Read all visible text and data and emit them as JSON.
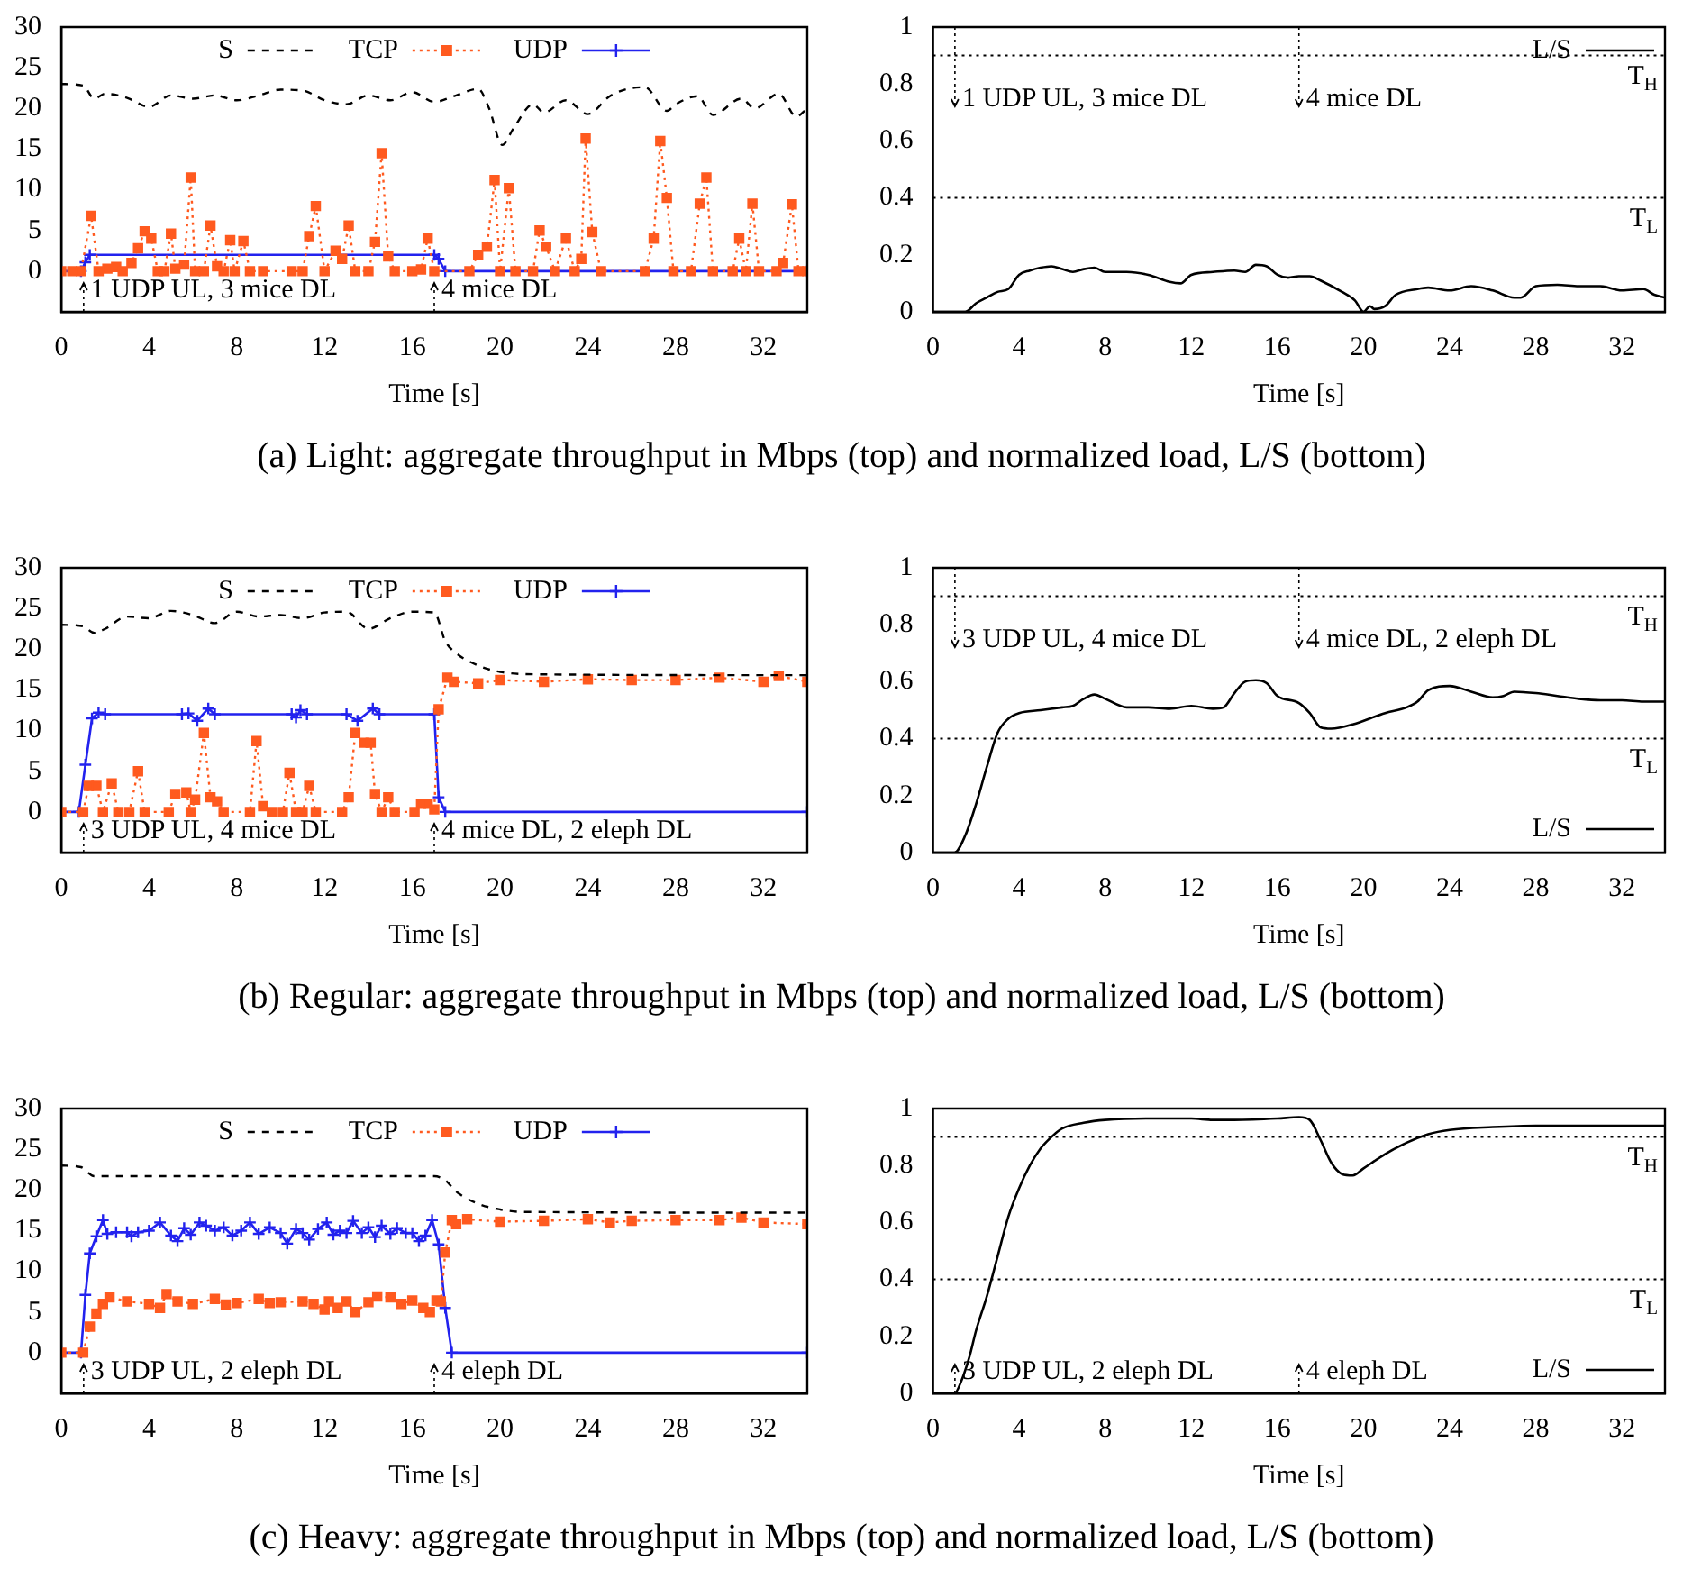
{
  "chart_data": [
    {
      "type": "line",
      "xlabel": "Time [s]",
      "xlim": [
        0,
        34
      ],
      "xticks": [
        0,
        4,
        8,
        12,
        16,
        20,
        24,
        28,
        32
      ],
      "ylim": [
        -5,
        30
      ],
      "yticks": [
        0,
        5,
        10,
        15,
        20,
        25,
        30
      ],
      "grid": false,
      "legend": "top",
      "series": [
        {
          "name": "S",
          "color": "#000000",
          "marker": "none",
          "line_style": "dashed",
          "x": [
            0,
            1,
            1.5,
            2,
            3,
            4,
            5,
            6,
            7,
            8,
            9,
            10,
            11,
            12,
            13,
            14,
            15,
            16,
            17,
            18,
            19,
            19.5,
            20.1,
            20.6,
            21.5,
            22,
            23,
            24,
            25,
            26,
            26.6,
            27.6,
            28,
            29,
            29.7,
            31,
            31.6,
            32.7,
            33.5,
            34
          ],
          "values": [
            23,
            22.8,
            21.2,
            21.8,
            21.3,
            20.2,
            21.6,
            21.2,
            21.6,
            21.0,
            21.6,
            22.3,
            22.2,
            21.0,
            20.5,
            21.6,
            21.0,
            22.0,
            20.8,
            21.6,
            22.4,
            20,
            15.5,
            17.5,
            20.5,
            19.5,
            21.0,
            19.3,
            21.5,
            22.5,
            22.6,
            19.7,
            20.5,
            21.5,
            19.2,
            21.2,
            20.0,
            21.8,
            19.0,
            20
          ]
        },
        {
          "name": "TCP",
          "color": "#ff5a1f",
          "marker": "square",
          "line_style": "dotted",
          "x": [
            0,
            0.5,
            0.9,
            1.36,
            1.7,
            2.1,
            2.5,
            2.8,
            3.2,
            3.5,
            3.8,
            4.1,
            4.4,
            4.7,
            5.0,
            5.2,
            5.6,
            5.9,
            6.1,
            6.5,
            6.8,
            7.1,
            7.4,
            7.7,
            7.9,
            8.3,
            8.6,
            9.2,
            10.5,
            11.0,
            11.3,
            11.6,
            12.0,
            12.5,
            12.8,
            13.1,
            13.4,
            14.0,
            14.3,
            14.6,
            14.9,
            15.2,
            16.0,
            16.4,
            16.7,
            17.0,
            18.6,
            19.0,
            19.4,
            19.75,
            20.0,
            20.4,
            20.7,
            21.5,
            21.8,
            22.1,
            22.5,
            23.0,
            23.4,
            23.7,
            23.9,
            24.2,
            24.6,
            26.6,
            27.0,
            27.3,
            27.6,
            27.9,
            28.7,
            29.1,
            29.4,
            29.7,
            30.6,
            30.9,
            31.2,
            31.5,
            31.8,
            32.6,
            32.9,
            33.3,
            33.6,
            34
          ],
          "values": [
            0,
            0,
            0,
            6.8,
            0,
            0.3,
            0.5,
            0,
            1.0,
            2.8,
            4.9,
            4.0,
            0,
            0,
            4.6,
            0.3,
            0.8,
            11.5,
            0,
            0,
            5.6,
            0.6,
            0,
            3.8,
            0,
            3.7,
            0,
            0,
            0,
            0,
            4.3,
            8.0,
            0,
            2.5,
            1.5,
            5.6,
            0,
            0,
            3.6,
            14.5,
            1.8,
            0,
            0,
            0.2,
            4.0,
            0,
            0,
            2.0,
            3.0,
            11.2,
            0,
            10.2,
            0,
            0,
            5.0,
            3.0,
            0,
            4.0,
            0,
            1.5,
            16.3,
            4.8,
            0,
            0,
            4.0,
            16.0,
            9.0,
            0,
            0,
            8.3,
            11.5,
            0,
            0,
            4.0,
            0,
            8.3,
            0,
            0,
            1.0,
            8.2,
            0,
            0
          ]
        },
        {
          "name": "UDP",
          "color": "#2222ee",
          "marker": "cross",
          "line_style": "solid",
          "x": [
            0,
            0.9,
            1.1,
            1.3,
            17,
            17.2,
            17.5,
            34
          ],
          "values": [
            0,
            0,
            1.1,
            2,
            2,
            1.5,
            0,
            0
          ]
        }
      ],
      "annotations": [
        "1 UDP UL, 3 mice DL",
        "4 mice DL"
      ],
      "title": "(a)  Light: aggregate throughput in Mbps (top) and normalized load, L/S (bottom)"
    },
    {
      "type": "line",
      "xlabel": "Time [s]",
      "xlim": [
        0,
        34
      ],
      "xticks": [
        0,
        4,
        8,
        12,
        16,
        20,
        24,
        28,
        32
      ],
      "ylim": [
        0,
        1
      ],
      "yticks": [
        0,
        0.2,
        0.4,
        0.6,
        0.8,
        1
      ],
      "grid": false,
      "legend": "top right",
      "series": [
        {
          "name": "L/S",
          "color": "#000000",
          "marker": "none",
          "line_style": "solid",
          "x": [
            0,
            1.5,
            2,
            2.5,
            3,
            3.5,
            4,
            4.5,
            5,
            5.5,
            6,
            6.5,
            7,
            7.5,
            8,
            9,
            10,
            11,
            11.5,
            12,
            13,
            14,
            14.5,
            15,
            15.5,
            16,
            16.5,
            17,
            17.5,
            18,
            19,
            19.6,
            20,
            20.3,
            20.5,
            21,
            21.5,
            22.5,
            23,
            24,
            25,
            26,
            27,
            27.3,
            28,
            29,
            30,
            31,
            32,
            33,
            33.5,
            34
          ],
          "values": [
            0,
            0,
            0.03,
            0.05,
            0.07,
            0.08,
            0.13,
            0.145,
            0.155,
            0.16,
            0.15,
            0.14,
            0.15,
            0.155,
            0.14,
            0.14,
            0.13,
            0.105,
            0.1,
            0.13,
            0.14,
            0.145,
            0.14,
            0.165,
            0.16,
            0.13,
            0.12,
            0.125,
            0.125,
            0.11,
            0.07,
            0.04,
            0,
            0.02,
            0.01,
            0.02,
            0.06,
            0.08,
            0.085,
            0.075,
            0.09,
            0.075,
            0.05,
            0.05,
            0.09,
            0.095,
            0.09,
            0.09,
            0.075,
            0.08,
            0.06,
            0.05
          ]
        }
      ],
      "ref_lines": [
        {
          "axis": "y",
          "value": 0.9,
          "label": "T$_{H}$",
          "line_style": "dotted",
          "color": "#000000"
        },
        {
          "axis": "y",
          "value": 0.4,
          "label": "T$_{L}$",
          "line_style": "dotted",
          "color": "#000000"
        }
      ],
      "annotations": [
        "1 UDP UL, 3 mice DL",
        "4 mice DL"
      ]
    },
    {
      "type": "line",
      "xlabel": "Time [s]",
      "xlim": [
        0,
        34
      ],
      "xticks": [
        0,
        4,
        8,
        12,
        16,
        20,
        24,
        28,
        32
      ],
      "ylim": [
        -5,
        30
      ],
      "yticks": [
        0,
        5,
        10,
        15,
        20,
        25,
        30
      ],
      "grid": false,
      "legend": "top",
      "series": [
        {
          "name": "S",
          "color": "#000000",
          "marker": "none",
          "line_style": "dashed",
          "x": [
            0,
            1,
            1.5,
            2,
            3,
            4,
            5,
            6,
            7,
            8,
            9,
            10,
            11,
            12,
            13,
            14,
            15,
            16,
            17,
            17.5,
            18,
            19,
            20,
            22,
            34
          ],
          "values": [
            23,
            22.8,
            22,
            22.5,
            24,
            23.8,
            24.7,
            24.2,
            23.2,
            24.6,
            24,
            24.2,
            23.8,
            24.5,
            24.6,
            22.5,
            23.8,
            24.6,
            24.5,
            21,
            19.5,
            18,
            17.2,
            16.9,
            16.8
          ]
        },
        {
          "name": "TCP",
          "color": "#ff5a1f",
          "marker": "square",
          "line_style": "dotted",
          "x": [
            0,
            1,
            1.25,
            1.6,
            1.9,
            2.3,
            2.6,
            3.1,
            3.5,
            3.8,
            4.9,
            5.2,
            5.7,
            5.9,
            6.1,
            6.5,
            6.8,
            7.1,
            7.4,
            8.6,
            8.9,
            9.2,
            9.6,
            10.1,
            10.4,
            10.7,
            11.0,
            11.3,
            11.6,
            12.8,
            13.1,
            13.4,
            13.8,
            14.1,
            14.3,
            14.6,
            14.9,
            15.2,
            16.1,
            16.4,
            16.7,
            17.0,
            17.2,
            17.6,
            17.9,
            19,
            20,
            22,
            24,
            26,
            28,
            30,
            32,
            32.7,
            34
          ],
          "values": [
            0,
            0,
            3.2,
            3.2,
            0,
            3.5,
            0,
            0,
            5,
            0,
            0,
            2.2,
            2.4,
            0,
            1.5,
            9.7,
            1.8,
            1.3,
            0,
            0,
            8.7,
            0.7,
            0,
            0,
            4.8,
            0,
            0,
            3.2,
            0,
            0,
            1.8,
            9.7,
            8.5,
            8.5,
            2.2,
            0,
            1.8,
            0,
            0,
            1.0,
            1.0,
            0.3,
            12.6,
            16.5,
            16,
            15.8,
            16.2,
            16,
            16.3,
            16.2,
            16.2,
            16.5,
            16,
            16.7,
            16
          ]
        },
        {
          "name": "UDP",
          "color": "#2222ee",
          "marker": "cross",
          "line_style": "solid",
          "x": [
            0,
            0.8,
            1.1,
            1.4,
            1.7,
            2,
            5.5,
            5.8,
            6.2,
            6.7,
            7,
            10.5,
            10.7,
            10.9,
            11.2,
            13,
            13.5,
            14.2,
            14.5,
            17,
            17.2,
            17.5,
            34
          ],
          "values": [
            0,
            0,
            5.8,
            11.5,
            12.2,
            12,
            12,
            12.1,
            11.2,
            12.7,
            12,
            12,
            11.6,
            12.5,
            12,
            12,
            11.2,
            12.7,
            12,
            12,
            1.8,
            0,
            0
          ]
        }
      ],
      "annotations": [
        "3 UDP UL, 4 mice DL",
        "4 mice DL, 2 eleph DL"
      ],
      "title": "(b)  Regular: aggregate throughput in Mbps (top) and normalized load, L/S (bottom)"
    },
    {
      "type": "line",
      "xlabel": "Time [s]",
      "xlim": [
        0,
        34
      ],
      "xticks": [
        0,
        4,
        8,
        12,
        16,
        20,
        24,
        28,
        32
      ],
      "ylim": [
        0,
        1
      ],
      "yticks": [
        0,
        0.2,
        0.4,
        0.6,
        0.8,
        1
      ],
      "grid": false,
      "legend": "bottom right",
      "series": [
        {
          "name": "L/S",
          "color": "#000000",
          "marker": "none",
          "line_style": "solid",
          "x": [
            0,
            1,
            1.5,
            2,
            2.5,
            3,
            3.5,
            4,
            5,
            6,
            6.5,
            7,
            7.5,
            8,
            9,
            10,
            11,
            12,
            13,
            13.5,
            14,
            14.5,
            15,
            15.5,
            16,
            17,
            17.5,
            18,
            18.5,
            19.5,
            21,
            22,
            22.5,
            23,
            24,
            25,
            26,
            26.5,
            27,
            28,
            29,
            30,
            31,
            32,
            33,
            34
          ],
          "values": [
            0,
            0,
            0.06,
            0.17,
            0.3,
            0.42,
            0.47,
            0.49,
            0.5,
            0.51,
            0.515,
            0.54,
            0.555,
            0.54,
            0.51,
            0.51,
            0.505,
            0.515,
            0.505,
            0.51,
            0.56,
            0.6,
            0.605,
            0.595,
            0.55,
            0.525,
            0.49,
            0.44,
            0.435,
            0.45,
            0.49,
            0.51,
            0.53,
            0.57,
            0.585,
            0.565,
            0.545,
            0.55,
            0.565,
            0.56,
            0.55,
            0.54,
            0.535,
            0.535,
            0.53,
            0.53
          ]
        }
      ],
      "ref_lines": [
        {
          "axis": "y",
          "value": 0.9,
          "label": "T$_{H}$",
          "line_style": "dotted",
          "color": "#000000"
        },
        {
          "axis": "y",
          "value": 0.4,
          "label": "T$_{L}$",
          "line_style": "dotted",
          "color": "#000000"
        }
      ],
      "annotations": [
        "3 UDP UL, 4 mice DL",
        "4 mice DL, 2 eleph DL"
      ]
    },
    {
      "type": "line",
      "xlabel": "Time [s]",
      "xlim": [
        0,
        34
      ],
      "xticks": [
        0,
        4,
        8,
        12,
        16,
        20,
        24,
        28,
        32
      ],
      "ylim": [
        -5,
        30
      ],
      "yticks": [
        0,
        5,
        10,
        15,
        20,
        25,
        30
      ],
      "grid": false,
      "legend": "top",
      "series": [
        {
          "name": "S",
          "color": "#000000",
          "marker": "none",
          "line_style": "dashed",
          "x": [
            0,
            0.9,
            1.5,
            2,
            17,
            17.5,
            18,
            19,
            20,
            21,
            34
          ],
          "values": [
            23,
            22.8,
            21.7,
            21.7,
            21.7,
            21.2,
            19.8,
            18.3,
            17.6,
            17.3,
            17.2
          ]
        },
        {
          "name": "TCP",
          "color": "#ff5a1f",
          "marker": "square",
          "line_style": "dotted",
          "x": [
            0,
            1,
            1.3,
            1.6,
            1.9,
            2.2,
            3,
            4,
            4.5,
            4.8,
            5.3,
            6,
            7,
            7.5,
            8,
            9,
            9.5,
            10,
            11,
            11.5,
            12,
            12.2,
            12.6,
            13,
            13.4,
            14,
            14.4,
            15,
            15.5,
            16,
            16.5,
            16.8,
            17.1,
            17.3,
            17.5,
            17.8,
            18,
            18.5,
            20,
            22,
            24,
            25,
            26,
            28,
            30,
            31,
            32,
            34
          ],
          "values": [
            0,
            0,
            3.2,
            4.8,
            6,
            6.8,
            6.3,
            6,
            5.5,
            7.2,
            6.3,
            6.0,
            6.6,
            5.9,
            6.1,
            6.6,
            6.1,
            6.2,
            6.3,
            6.0,
            5.3,
            6.3,
            5.5,
            6.3,
            5.0,
            6.2,
            6.9,
            6.8,
            6.0,
            6.4,
            5.5,
            5.0,
            6.4,
            6.3,
            12.3,
            16.3,
            15.8,
            16.4,
            16.1,
            16.2,
            16.4,
            16.0,
            16.2,
            16.3,
            16.3,
            16.6,
            16.0,
            15.8
          ]
        },
        {
          "name": "UDP",
          "color": "#2222ee",
          "marker": "cross",
          "line_style": "solid",
          "x": [
            0,
            0.9,
            1.1,
            1.3,
            1.6,
            1.9,
            2.1,
            2.5,
            3,
            3.2,
            3.5,
            4,
            4.5,
            5,
            5.3,
            5.6,
            5.9,
            6.3,
            6.6,
            7,
            7.4,
            7.8,
            8.2,
            8.6,
            9,
            9.5,
            10,
            10.3,
            10.7,
            11,
            11.3,
            11.7,
            12.1,
            12.4,
            12.7,
            13,
            13.3,
            13.7,
            14,
            14.3,
            14.6,
            15,
            15.3,
            15.7,
            16,
            16.3,
            16.6,
            16.9,
            17.2,
            17.5,
            17.8,
            34
          ],
          "values": [
            0,
            0,
            7.1,
            12.2,
            14.3,
            16.3,
            14.6,
            14.8,
            14.8,
            14.3,
            14.8,
            15,
            16,
            14.4,
            13.7,
            15.3,
            14.5,
            16,
            15.6,
            15,
            15.4,
            14.4,
            15,
            16,
            14.6,
            15.4,
            14.7,
            13.4,
            15.2,
            14.7,
            13.9,
            15.2,
            16,
            14.5,
            15,
            14.7,
            16.2,
            14.7,
            15.4,
            14.2,
            15.6,
            14.6,
            15.3,
            14.7,
            14.7,
            13.7,
            14.4,
            16.3,
            13.3,
            5.5,
            0,
            0
          ]
        }
      ],
      "annotations": [
        "3 UDP UL, 2 eleph DL",
        "4 eleph DL"
      ],
      "title": "(c)  Heavy: aggregate throughput in Mbps (top) and normalized load, L/S (bottom)"
    },
    {
      "type": "line",
      "xlabel": "Time [s]",
      "xlim": [
        0,
        34
      ],
      "xticks": [
        0,
        4,
        8,
        12,
        16,
        20,
        24,
        28,
        32
      ],
      "ylim": [
        0,
        1
      ],
      "yticks": [
        0,
        0.2,
        0.4,
        0.6,
        0.8,
        1
      ],
      "grid": false,
      "legend": "bottom right",
      "series": [
        {
          "name": "L/S",
          "color": "#000000",
          "marker": "none",
          "line_style": "solid",
          "x": [
            0,
            1,
            1.3,
            1.7,
            2,
            2.5,
            3,
            3.5,
            4,
            4.5,
            5,
            5.5,
            6,
            7,
            8,
            10,
            12,
            13,
            14,
            16,
            17,
            17.5,
            18,
            18.5,
            19,
            19.5,
            20,
            21,
            22,
            23,
            24,
            26,
            28,
            30,
            32,
            34
          ],
          "values": [
            0,
            0,
            0.04,
            0.13,
            0.22,
            0.34,
            0.48,
            0.62,
            0.72,
            0.8,
            0.86,
            0.9,
            0.93,
            0.95,
            0.96,
            0.965,
            0.965,
            0.96,
            0.96,
            0.965,
            0.97,
            0.96,
            0.89,
            0.81,
            0.77,
            0.765,
            0.79,
            0.84,
            0.88,
            0.91,
            0.925,
            0.935,
            0.94,
            0.94,
            0.94,
            0.94
          ]
        }
      ],
      "ref_lines": [
        {
          "axis": "y",
          "value": 0.9,
          "label": "T$_{H}$",
          "line_style": "dotted",
          "color": "#000000"
        },
        {
          "axis": "y",
          "value": 0.4,
          "label": "T$_{L}$",
          "line_style": "dotted",
          "color": "#000000"
        }
      ],
      "annotations": [
        "3 UDP UL, 2 eleph DL",
        "4 eleph DL"
      ]
    }
  ]
}
